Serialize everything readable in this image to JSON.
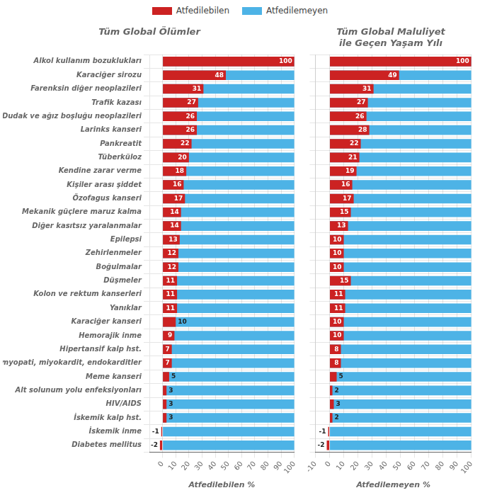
{
  "chart_data": [
    {
      "type": "bar",
      "orientation": "horizontal",
      "title": "Tüm Global Ölümler",
      "xlabel": "Atfedilebilen %",
      "categories": [
        "Alkol kullanım bozuklukları",
        "Karaciğer sirozu",
        "Farenksin diğer neoplazileri",
        "Trafik kazası",
        "Dudak ve ağız boşluğu neoplazileri",
        "Larinks kanseri",
        "Pankreatit",
        "Tüberküloz",
        "Kendine zarar verme",
        "Kişiler arası şiddet",
        "Özofagus kanseri",
        "Mekanik güçlere maruz kalma",
        "Diğer kasıtsız yaralanmalar",
        "Epilepsi",
        "Zehirlenmeler",
        "Boğulmalar",
        "Düşmeler",
        "Kolon ve rektum kanserleri",
        "Yanıklar",
        "Karaciğer kanseri",
        "Hemorajik inme",
        "Hipertansif kalp hst.",
        "Kardiyomyopati, miyokardit, endokarditler",
        "Meme kanseri",
        "Alt solunum yolu enfeksiyonları",
        "HIV/AIDS",
        "İskemik kalp hst.",
        "İskemik inme",
        "Diabetes mellitus"
      ],
      "series": [
        {
          "name": "Atfedilebilen",
          "color": "#cc2222",
          "data_labels": true,
          "values": [
            100,
            48,
            31,
            27,
            26,
            26,
            22,
            20,
            18,
            16,
            17,
            14,
            14,
            13,
            12,
            12,
            11,
            11,
            11,
            10,
            9,
            7,
            7,
            5,
            3,
            3,
            3,
            -1,
            -2
          ]
        },
        {
          "name": "Atfedilemeyen",
          "color": "#4db3e6",
          "values": [
            100,
            100,
            100,
            100,
            100,
            100,
            100,
            100,
            100,
            100,
            100,
            100,
            100,
            100,
            100,
            100,
            100,
            100,
            100,
            100,
            100,
            100,
            100,
            100,
            100,
            100,
            100,
            100,
            100
          ]
        }
      ],
      "xlim": [
        -10,
        100
      ],
      "xticks": [
        0,
        10,
        20,
        30,
        40,
        50,
        60,
        70,
        80,
        90,
        100
      ],
      "grid": true,
      "legend": "top"
    },
    {
      "type": "bar",
      "orientation": "horizontal",
      "title": "Tüm Global Maluliyet\nile Geçen Yaşam Yılı",
      "xlabel": "Atfedilemeyen %",
      "categories": [
        "Alkol kullanım bozuklukları",
        "Karaciğer sirozu",
        "Farenksin diğer neoplazileri",
        "Trafik kazası",
        "Dudak ve ağız boşluğu neoplazileri",
        "Larinks kanseri",
        "Pankreatit",
        "Tüberküloz",
        "Kendine zarar verme",
        "Kişiler arası şiddet",
        "Özofagus kanseri",
        "Mekanik güçlere maruz kalma",
        "Diğer kasıtsız yaralanmalar",
        "Epilepsi",
        "Zehirlenmeler",
        "Boğulmalar",
        "Düşmeler",
        "Kolon ve rektum kanserleri",
        "Yanıklar",
        "Karaciğer kanseri",
        "Hemorajik inme",
        "Hipertansif kalp hst.",
        "Kardiyomyopati, miyokardit, endokarditler",
        "Meme kanseri",
        "Alt solunum yolu enfeksiyonları",
        "HIV/AIDS",
        "İskemik kalp hst.",
        "İskemik inme",
        "Diabetes mellitus"
      ],
      "series": [
        {
          "name": "Atfedilebilen",
          "color": "#cc2222",
          "data_labels": true,
          "values": [
            100,
            49,
            31,
            27,
            26,
            28,
            22,
            21,
            19,
            16,
            17,
            15,
            13,
            10,
            10,
            10,
            15,
            11,
            11,
            10,
            10,
            8,
            8,
            5,
            2,
            3,
            2,
            -1,
            -2
          ]
        },
        {
          "name": "Atfedilemeyen",
          "color": "#4db3e6",
          "values": [
            100,
            100,
            100,
            100,
            100,
            100,
            100,
            100,
            100,
            100,
            100,
            100,
            100,
            100,
            100,
            100,
            100,
            100,
            100,
            100,
            100,
            100,
            100,
            100,
            100,
            100,
            100,
            100,
            100
          ]
        }
      ],
      "xlim": [
        -10,
        100
      ],
      "xticks": [
        -10,
        0,
        10,
        20,
        30,
        40,
        50,
        60,
        70,
        80,
        90,
        100
      ],
      "grid": true,
      "tick_labels": "x"
    }
  ]
}
